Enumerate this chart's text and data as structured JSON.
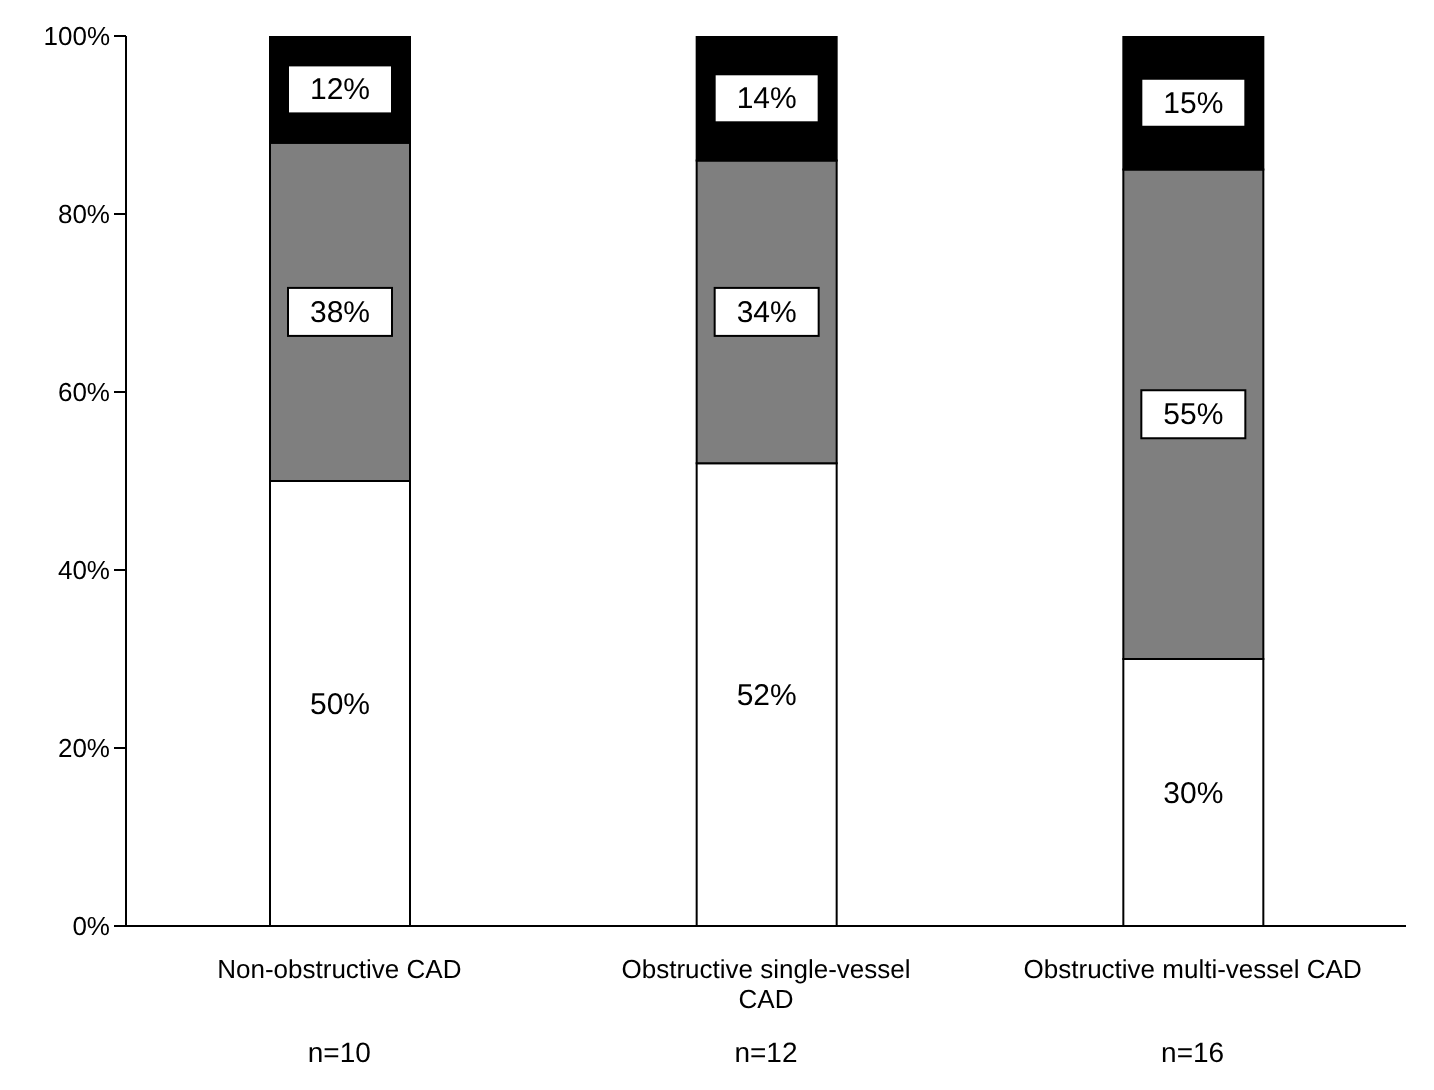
{
  "chart_data": {
    "type": "bar",
    "stacked": true,
    "categories": [
      "Non-obstructive CAD",
      "Obstructive single-vessel CAD",
      "Obstructive multi-vessel CAD"
    ],
    "series": [
      {
        "color": "#ffffff",
        "values": [
          50,
          52,
          30
        ],
        "value_labels": [
          "50%",
          "52%",
          "30%"
        ]
      },
      {
        "color": "#7f7f7f",
        "values": [
          38,
          34,
          55
        ],
        "value_labels": [
          "38%",
          "34%",
          "55%"
        ]
      },
      {
        "color": "#000000",
        "values": [
          12,
          14,
          15
        ],
        "value_labels": [
          "12%",
          "14%",
          "15%"
        ]
      }
    ],
    "ylim": [
      0,
      100
    ],
    "yticks": [
      {
        "value": 0,
        "label": "0%"
      },
      {
        "value": 20,
        "label": "20%"
      },
      {
        "value": 40,
        "label": "40%"
      },
      {
        "value": 60,
        "label": "60%"
      },
      {
        "value": 80,
        "label": "80%"
      },
      {
        "value": 100,
        "label": "100%"
      }
    ],
    "annotations": [
      "n=10",
      "n=12",
      "n=16"
    ],
    "grid": false,
    "legend": false
  }
}
